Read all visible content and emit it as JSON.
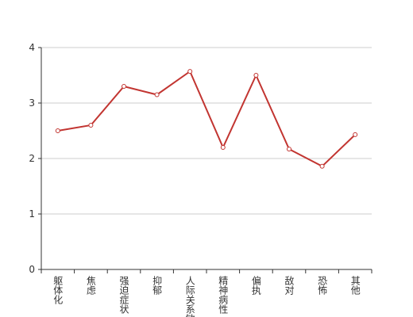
{
  "chart_data": {
    "type": "line",
    "categories": [
      "躯体化",
      "焦虑",
      "强迫症状",
      "抑郁",
      "人际关系敏感",
      "精神病性",
      "偏执",
      "敌对",
      "恐怖",
      "其他"
    ],
    "values": [
      2.5,
      2.6,
      3.3,
      3.15,
      3.57,
      2.2,
      3.5,
      2.17,
      1.86,
      2.43
    ],
    "color": "#c23531",
    "ylim": [
      0,
      4
    ],
    "yticks": [
      0,
      1,
      2,
      3,
      4
    ],
    "grid": true
  }
}
